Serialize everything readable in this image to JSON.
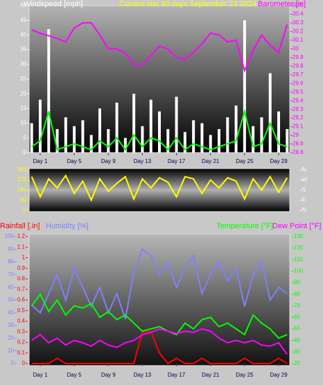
{
  "chart_data": [
    {
      "type": "combo",
      "title": "Current last 30 days September 23 2024",
      "x": [
        0,
        1,
        2,
        3,
        4,
        5,
        6,
        7,
        8,
        9,
        10,
        11,
        12,
        13,
        14,
        15,
        16,
        17,
        18,
        19,
        20,
        21,
        22,
        23,
        24,
        25,
        26,
        27,
        28,
        29,
        30
      ],
      "xlim": [
        -0.3,
        30.3
      ],
      "xticks": [
        {
          "value": 1,
          "label": "Day 1"
        },
        {
          "value": 5,
          "label": "Day 5"
        },
        {
          "value": 9,
          "label": "Day 9"
        },
        {
          "value": 13,
          "label": "Day 13"
        },
        {
          "value": 17,
          "label": "Day 17"
        },
        {
          "value": 21,
          "label": "Day 21"
        },
        {
          "value": 25,
          "label": "Day 25"
        },
        {
          "value": 29,
          "label": "Day 29"
        }
      ],
      "ylim": [
        0,
        50
      ],
      "yticks": [
        0,
        5,
        10,
        15,
        20,
        25,
        30,
        35,
        40,
        45,
        50
      ],
      "y2lim": [
        28.8,
        30.5
      ],
      "y2ticks": [
        28.8,
        28.9,
        29,
        29.1,
        29.2,
        29.3,
        29.4,
        29.5,
        29.6,
        29.7,
        29.8,
        29.9,
        30,
        30.1,
        30.2,
        30.3,
        30.4,
        30.5
      ],
      "series": [
        {
          "name": "Windspeed [mph]",
          "color": "#ffffff",
          "style": "bar",
          "values": [
            10,
            18,
            42,
            8,
            12,
            9,
            11,
            6,
            15,
            8,
            17,
            5,
            20,
            9,
            18,
            14,
            8,
            19,
            7,
            11,
            10,
            6,
            8,
            12,
            16,
            45,
            9,
            12,
            27,
            14,
            8
          ]
        },
        {
          "color": "#00ff00",
          "style": "line",
          "values": [
            2,
            4,
            14,
            1,
            2,
            3,
            2,
            1,
            4,
            2,
            5,
            1,
            6,
            2,
            5,
            4,
            1,
            5,
            1,
            3,
            2,
            1,
            2,
            3,
            4,
            14,
            2,
            3,
            10,
            3,
            2
          ]
        },
        {
          "name": "Barometer [in]",
          "color": "#ff00ff",
          "style": "line",
          "axis": "y2",
          "values": [
            30.22,
            30.18,
            30.15,
            30.12,
            30.08,
            30.24,
            30.3,
            30.3,
            30.16,
            30.0,
            30.0,
            29.95,
            29.82,
            29.82,
            29.92,
            30.03,
            30.0,
            29.9,
            29.88,
            29.96,
            30.06,
            30.18,
            30.16,
            30.08,
            30.1,
            29.75,
            29.98,
            30.16,
            30.04,
            29.96,
            30.28
          ]
        }
      ]
    },
    {
      "type": "combo",
      "x": [
        0,
        1,
        2,
        3,
        4,
        5,
        6,
        7,
        8,
        9,
        10,
        11,
        12,
        13,
        14,
        15,
        16,
        17,
        18,
        19,
        20,
        21,
        22,
        23,
        24,
        25,
        26,
        27,
        28,
        29,
        30
      ],
      "xlim": [
        -0.3,
        30.3
      ],
      "ylim": [
        0,
        360
      ],
      "yticks": [
        0,
        90,
        180,
        270,
        360
      ],
      "y2lim": [
        0,
        360
      ],
      "y2ticks": [
        {
          "value": 0,
          "label": "N"
        },
        {
          "value": 90,
          "label": "E"
        },
        {
          "value": 180,
          "label": "S"
        },
        {
          "value": 270,
          "label": "W"
        },
        {
          "value": 360,
          "label": "N"
        }
      ],
      "series": [
        {
          "color": "#ffff00",
          "style": "line",
          "values": [
            300,
            120,
            280,
            200,
            310,
            150,
            260,
            90,
            280,
            170,
            240,
            300,
            100,
            280,
            200,
            290,
            250,
            120,
            300,
            280,
            150,
            270,
            200,
            290,
            260,
            100,
            280,
            180,
            300,
            160,
            290
          ]
        }
      ]
    },
    {
      "type": "combo",
      "x": [
        0,
        1,
        2,
        3,
        4,
        5,
        6,
        7,
        8,
        9,
        10,
        11,
        12,
        13,
        14,
        15,
        16,
        17,
        18,
        19,
        20,
        21,
        22,
        23,
        24,
        25,
        26,
        27,
        28,
        29,
        30
      ],
      "xlim": [
        -0.3,
        30.3
      ],
      "xticks": [
        {
          "value": 1,
          "label": "Day 1"
        },
        {
          "value": 5,
          "label": "Day 5"
        },
        {
          "value": 9,
          "label": "Day 9"
        },
        {
          "value": 13,
          "label": "Day 13"
        },
        {
          "value": 17,
          "label": "Day 17"
        },
        {
          "value": 21,
          "label": "Day 21"
        },
        {
          "value": 25,
          "label": "Day 25"
        },
        {
          "value": 29,
          "label": "Day 29"
        }
      ],
      "ylim": [
        0,
        1.2
      ],
      "yticks": [
        0,
        0.1,
        0.2,
        0.3,
        0.4,
        0.5,
        0.6,
        0.7,
        0.8,
        0.9,
        1,
        1.1,
        1.2
      ],
      "y2lim": [
        20,
        130
      ],
      "y2ticks": [
        20,
        30,
        40,
        50,
        60,
        70,
        80,
        90,
        100,
        110,
        120,
        130
      ],
      "y3lim": [
        0,
        100
      ],
      "y3ticks": [
        0,
        10,
        20,
        30,
        40,
        50,
        60,
        70,
        80,
        90,
        100
      ],
      "series": [
        {
          "name": "Rainfall [.in]",
          "color": "#ff0000",
          "style": "line",
          "values": [
            0,
            0,
            0,
            0.05,
            0,
            0,
            0,
            0,
            0,
            0,
            0,
            0,
            0,
            0.3,
            0.3,
            0.1,
            0,
            0.05,
            0,
            0,
            0.05,
            0,
            0,
            0,
            0,
            0.05,
            0,
            0,
            0,
            0.05,
            0
          ]
        },
        {
          "name": "Humidity [%]",
          "color": "#7f7fff",
          "style": "line",
          "axis": "y3",
          "values": [
            46,
            40,
            55,
            70,
            50,
            75,
            60,
            45,
            60,
            40,
            55,
            35,
            72,
            90,
            85,
            70,
            80,
            60,
            75,
            85,
            55,
            70,
            80,
            65,
            75,
            45,
            70,
            80,
            50,
            60,
            55
          ]
        },
        {
          "name": "Temperature [°F]",
          "color": "#00ff00",
          "style": "line",
          "axis": "y2",
          "values": [
            70,
            80,
            65,
            75,
            62,
            70,
            68,
            72,
            60,
            65,
            58,
            62,
            55,
            48,
            50,
            52,
            48,
            45,
            55,
            50,
            58,
            60,
            52,
            55,
            50,
            45,
            62,
            55,
            50,
            42,
            45
          ]
        },
        {
          "name": "Dew Point [°F]",
          "color": "#ff00ff",
          "style": "line",
          "axis": "y2",
          "values": [
            40,
            45,
            38,
            42,
            36,
            40,
            38,
            35,
            40,
            36,
            34,
            38,
            40,
            45,
            47,
            50,
            48,
            46,
            48,
            47,
            50,
            48,
            42,
            38,
            40,
            38,
            40,
            36,
            35,
            38,
            28
          ]
        }
      ]
    }
  ]
}
